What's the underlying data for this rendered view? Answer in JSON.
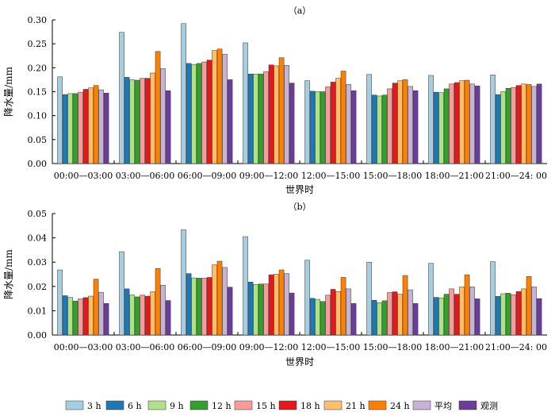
{
  "colors": {
    "3 h": "#a6cee3",
    "6 h": "#1f78b4",
    "9 h": "#b2df8a",
    "12 h": "#33a02c",
    "15 h": "#fb9a99",
    "18 h": "#e31a1c",
    "21 h": "#fdbf6f",
    "24 h": "#ff7f00",
    "平均": "#cab2d6",
    "观测": "#6a3d9a"
  },
  "legend": [
    "3 h",
    "6 h",
    "9 h",
    "12 h",
    "15 h",
    "18 h",
    "21 h",
    "24 h",
    "平均",
    "观测"
  ],
  "chart_data": [
    {
      "type": "bar",
      "panel": "（a）",
      "xlabel": "世界时",
      "ylabel": "降水量/mm",
      "ylim": [
        0,
        0.3
      ],
      "yticks": [
        "0.00",
        "0.05",
        "0.10",
        "0.15",
        "0.20",
        "0.25",
        "0.30"
      ],
      "categories": [
        "00:00—03:00",
        "03:00—06:00",
        "06:00—09:00",
        "09:00—12:00",
        "12:00—15:00",
        "15:00—18:00",
        "18:00—21:00",
        "21:00—24: 00"
      ],
      "series": [
        {
          "name": "3 h",
          "values": [
            0.181,
            0.274,
            0.292,
            0.252,
            0.173,
            0.186,
            0.184,
            0.185
          ]
        },
        {
          "name": "6 h",
          "values": [
            0.144,
            0.18,
            0.209,
            0.187,
            0.151,
            0.143,
            0.149,
            0.144
          ]
        },
        {
          "name": "9 h",
          "values": [
            0.146,
            0.175,
            0.207,
            0.187,
            0.15,
            0.141,
            0.148,
            0.15
          ]
        },
        {
          "name": "12 h",
          "values": [
            0.146,
            0.174,
            0.209,
            0.187,
            0.15,
            0.143,
            0.156,
            0.157
          ]
        },
        {
          "name": "15 h",
          "values": [
            0.149,
            0.178,
            0.212,
            0.192,
            0.16,
            0.156,
            0.166,
            0.159
          ]
        },
        {
          "name": "18 h",
          "values": [
            0.155,
            0.178,
            0.216,
            0.206,
            0.17,
            0.168,
            0.169,
            0.163
          ]
        },
        {
          "name": "21 h",
          "values": [
            0.158,
            0.189,
            0.236,
            0.204,
            0.178,
            0.173,
            0.173,
            0.166
          ]
        },
        {
          "name": "24 h",
          "values": [
            0.163,
            0.234,
            0.239,
            0.221,
            0.193,
            0.175,
            0.174,
            0.165
          ]
        },
        {
          "name": "平均",
          "values": [
            0.154,
            0.198,
            0.228,
            0.205,
            0.165,
            0.161,
            0.166,
            0.161
          ]
        },
        {
          "name": "观测",
          "values": [
            0.147,
            0.152,
            0.175,
            0.168,
            0.152,
            0.152,
            0.162,
            0.166
          ]
        }
      ]
    },
    {
      "type": "bar",
      "panel": "（b）",
      "xlabel": "世界时",
      "ylabel": "降水量/mm",
      "ylim": [
        0,
        0.05
      ],
      "yticks": [
        "0.00",
        "0.01",
        "0.02",
        "0.03",
        "0.04",
        "0.05"
      ],
      "categories": [
        "00:00—03:00",
        "03:00—06:00",
        "06:00—09:00",
        "09:00—12:00",
        "12:00—15:00",
        "15:00—18:00",
        "18:00—21:00",
        "21:00—24: 00"
      ],
      "series": [
        {
          "name": "3 h",
          "values": [
            0.0268,
            0.0343,
            0.0433,
            0.0405,
            0.0308,
            0.03,
            0.0295,
            0.0302
          ]
        },
        {
          "name": "6 h",
          "values": [
            0.0162,
            0.019,
            0.0253,
            0.0218,
            0.0151,
            0.0143,
            0.0155,
            0.0159
          ]
        },
        {
          "name": "9 h",
          "values": [
            0.0155,
            0.0165,
            0.0235,
            0.0208,
            0.0147,
            0.0133,
            0.0153,
            0.017
          ]
        },
        {
          "name": "12 h",
          "values": [
            0.014,
            0.0157,
            0.0234,
            0.021,
            0.0138,
            0.0141,
            0.0168,
            0.0172
          ]
        },
        {
          "name": "15 h",
          "values": [
            0.0149,
            0.0164,
            0.0234,
            0.021,
            0.0164,
            0.0175,
            0.019,
            0.0166
          ]
        },
        {
          "name": "18 h",
          "values": [
            0.0154,
            0.016,
            0.0237,
            0.0248,
            0.0188,
            0.0178,
            0.0168,
            0.0179
          ]
        },
        {
          "name": "21 h",
          "values": [
            0.016,
            0.0178,
            0.0289,
            0.025,
            0.0179,
            0.0168,
            0.0198,
            0.019
          ]
        },
        {
          "name": "24 h",
          "values": [
            0.023,
            0.0274,
            0.0304,
            0.0268,
            0.0237,
            0.0245,
            0.0248,
            0.0241
          ]
        },
        {
          "name": "平均",
          "values": [
            0.0176,
            0.0205,
            0.0278,
            0.0253,
            0.019,
            0.0186,
            0.0198,
            0.0198
          ]
        },
        {
          "name": "观测",
          "values": [
            0.013,
            0.0142,
            0.0197,
            0.0173,
            0.013,
            0.013,
            0.0149,
            0.015
          ]
        }
      ]
    }
  ]
}
